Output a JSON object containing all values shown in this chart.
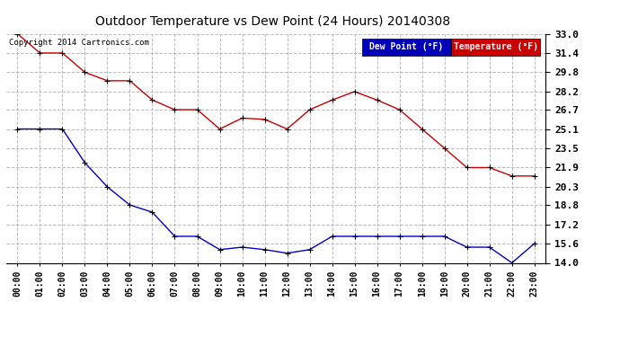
{
  "title": "Outdoor Temperature vs Dew Point (24 Hours) 20140308",
  "copyright": "Copyright 2014 Cartronics.com",
  "hours": [
    "00:00",
    "01:00",
    "02:00",
    "03:00",
    "04:00",
    "05:00",
    "06:00",
    "07:00",
    "08:00",
    "09:00",
    "10:00",
    "11:00",
    "12:00",
    "13:00",
    "14:00",
    "15:00",
    "16:00",
    "17:00",
    "18:00",
    "19:00",
    "20:00",
    "21:00",
    "22:00",
    "23:00"
  ],
  "temperature": [
    33.0,
    31.4,
    31.4,
    29.8,
    29.1,
    29.1,
    27.5,
    26.7,
    26.7,
    25.1,
    26.0,
    25.9,
    25.1,
    26.7,
    27.5,
    28.2,
    27.5,
    26.7,
    25.1,
    23.5,
    21.9,
    21.9,
    21.2,
    21.2
  ],
  "dew_point": [
    25.1,
    25.1,
    25.1,
    22.3,
    20.3,
    18.8,
    18.2,
    16.2,
    16.2,
    15.1,
    15.3,
    15.1,
    14.8,
    15.1,
    16.2,
    16.2,
    16.2,
    16.2,
    16.2,
    16.2,
    15.3,
    15.3,
    14.0,
    15.6
  ],
  "temp_color": "#cc0000",
  "dew_color": "#0000cc",
  "ylim_min": 14.0,
  "ylim_max": 33.0,
  "yticks": [
    33.0,
    31.4,
    29.8,
    28.2,
    26.7,
    25.1,
    23.5,
    21.9,
    20.3,
    18.8,
    17.2,
    15.6,
    14.0
  ],
  "bg_color": "#ffffff",
  "grid_color": "#bbbbbb",
  "legend_dew_bg": "#0000bb",
  "legend_temp_bg": "#cc0000",
  "legend_dew_text": "Dew Point (°F)",
  "legend_temp_text": "Temperature (°F)"
}
